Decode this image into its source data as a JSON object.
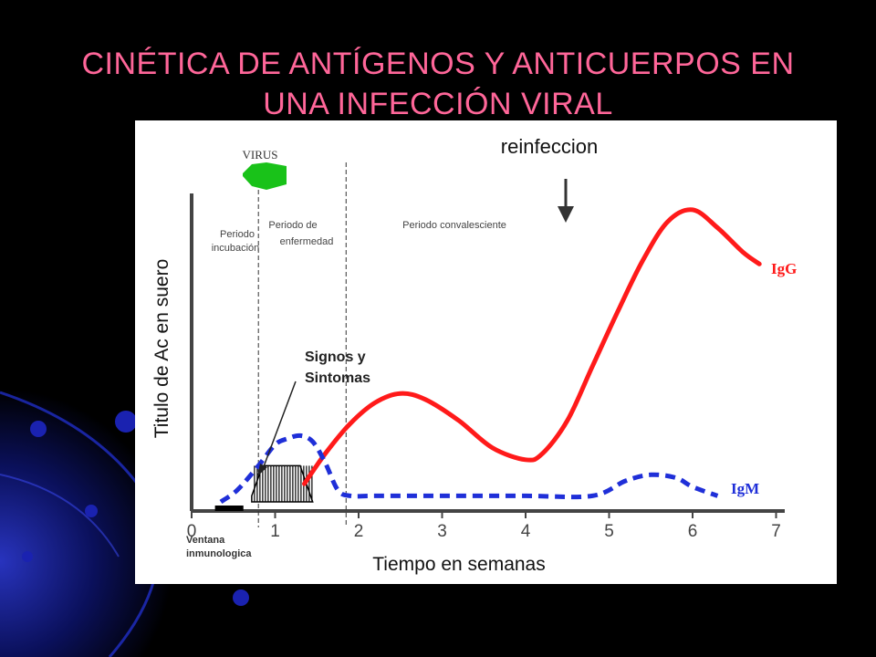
{
  "slide": {
    "title_line1": "CINÉTICA DE ANTÍGENOS Y ANTICUERPOS EN",
    "title_line2": "UNA INFECCIÓN VIRAL"
  },
  "colors": {
    "background": "#000000",
    "title": "#ff6699",
    "igg": "#ff1a1a",
    "igm": "#1f2fd8",
    "virus": "#19c219",
    "panel": "#ffffff"
  },
  "chart_data": {
    "type": "line",
    "xlabel": "Tiempo en semanas",
    "ylabel": "Titulo de Ac en suero",
    "xlim": [
      0,
      7
    ],
    "ylim": [
      0,
      1
    ],
    "x_ticks": [
      "0",
      "1",
      "2",
      "3",
      "4",
      "5",
      "6",
      "7"
    ],
    "series": [
      {
        "name": "IgG",
        "style": "solid",
        "x": [
          1.35,
          1.6,
          1.9,
          2.2,
          2.5,
          2.8,
          3.2,
          3.6,
          4.0,
          4.2,
          4.5,
          4.8,
          5.1,
          5.4,
          5.7,
          6.0,
          6.3,
          6.6,
          6.8
        ],
        "y": [
          0.06,
          0.16,
          0.26,
          0.33,
          0.36,
          0.34,
          0.27,
          0.18,
          0.14,
          0.16,
          0.27,
          0.45,
          0.63,
          0.8,
          0.93,
          0.97,
          0.91,
          0.83,
          0.79
        ]
      },
      {
        "name": "IgM",
        "style": "dashed",
        "x": [
          0.35,
          0.55,
          0.8,
          1.0,
          1.15,
          1.3,
          1.45,
          1.6,
          1.75,
          1.9,
          2.2,
          3.0,
          4.0,
          4.8,
          5.2,
          5.5,
          5.8,
          6.0,
          6.3
        ],
        "y": [
          0.0,
          0.04,
          0.12,
          0.19,
          0.21,
          0.22,
          0.2,
          0.13,
          0.04,
          0.02,
          0.02,
          0.02,
          0.02,
          0.02,
          0.07,
          0.09,
          0.08,
          0.05,
          0.02
        ]
      }
    ],
    "phases": [
      {
        "label_line1": "Periodo",
        "label_line2": "incubación",
        "start": 0,
        "end": 0.8
      },
      {
        "label_line1": "Periodo de",
        "label_line2": "enfermedad",
        "start": 0.8,
        "end": 1.85
      },
      {
        "label_line1": "Periodo convalesciente",
        "label_line2": "",
        "start": 1.85,
        "end": 7
      }
    ],
    "phase_lines_x": [
      0.8,
      1.85
    ],
    "annotations": {
      "virus": "VIRUS",
      "reinfection": "reinfeccion",
      "reinfection_x": 4.5,
      "signs_line1": "Signos y",
      "signs_line2": "Sintomas",
      "window_line1": "Ventana",
      "window_line2": "inmunologica",
      "igg_label": "IgG",
      "igm_label": "IgM"
    },
    "grid": false,
    "legend": "none"
  }
}
